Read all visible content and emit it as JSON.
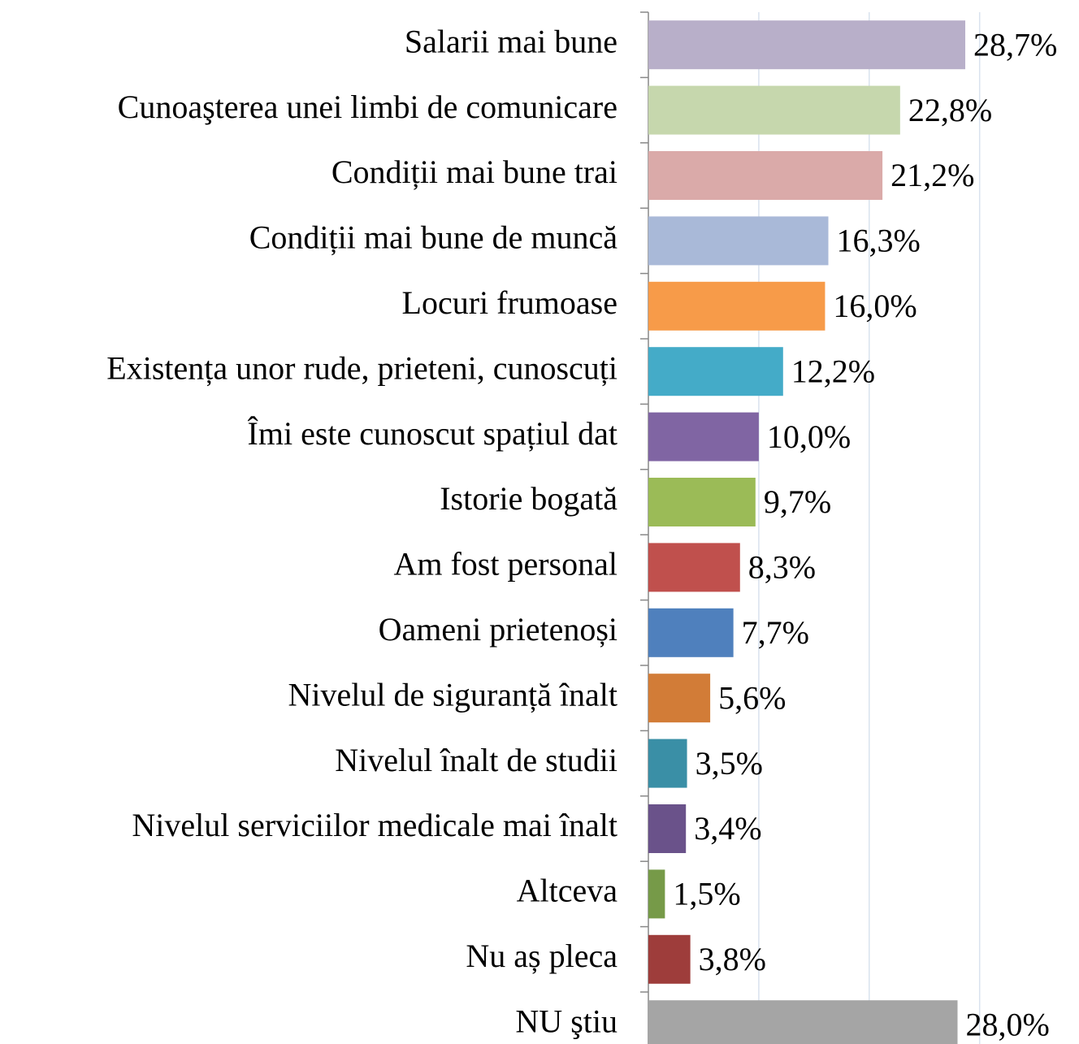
{
  "chart_data": {
    "type": "barh",
    "categories": [
      "Salarii mai bune",
      "Cunoaşterea unei limbi de comunicare",
      "Condiții mai bune trai",
      "Condiții mai bune de muncă",
      "Locuri frumoase",
      "Existența unor rude, prieteni, cunoscuți",
      "Îmi este cunoscut spațiul dat",
      "Istorie bogată",
      "Am fost personal",
      "Oameni prietenoși",
      "Nivelul de siguranță înalt",
      "Nivelul înalt de studii",
      "Nivelul serviciilor medicale mai înalt",
      "Altceva",
      "Nu aș pleca",
      "NU ştiu"
    ],
    "values": [
      28.7,
      22.8,
      21.2,
      16.3,
      16.0,
      12.2,
      10.0,
      9.7,
      8.3,
      7.7,
      5.6,
      3.5,
      3.4,
      1.5,
      3.8,
      28.0
    ],
    "value_labels": [
      "28,7%",
      "22,8%",
      "21,2%",
      "16,3%",
      "16,0%",
      "12,2%",
      "10,0%",
      "9,7%",
      "8,3%",
      "7,7%",
      "5,6%",
      "3,5%",
      "3,4%",
      "1,5%",
      "3,8%",
      "28,0%"
    ],
    "colors": [
      "#b8afc9",
      "#c6d7ad",
      "#daaaa9",
      "#a9b9d8",
      "#f79b49",
      "#44abc8",
      "#8065a3",
      "#9bbb57",
      "#c0504d",
      "#4f80bd",
      "#d27c37",
      "#3a8fa6",
      "#6a528a",
      "#769a48",
      "#9e3d3b",
      "#a5a5a5"
    ],
    "xlim": [
      0,
      39
    ],
    "xticks": [
      0,
      10,
      20,
      30
    ],
    "grid": true
  }
}
